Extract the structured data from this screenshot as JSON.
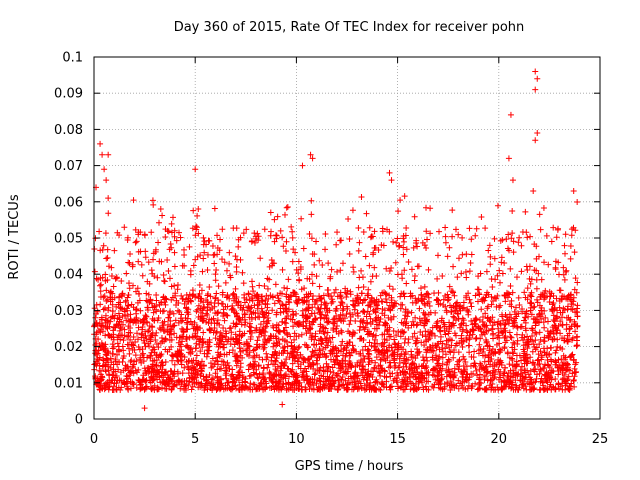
{
  "chart_data": {
    "type": "scatter",
    "title": "Day 360 of 2015, Rate Of TEC Index for receiver pohn",
    "xlabel": "GPS time / hours",
    "ylabel": "ROTI / TECUs",
    "xlim": [
      0,
      25
    ],
    "ylim": [
      0,
      0.1
    ],
    "x_ticks": [
      0,
      5,
      10,
      15,
      20,
      25
    ],
    "x_tick_labels": [
      "0",
      "5",
      "10",
      "15",
      "20",
      "25"
    ],
    "y_ticks": [
      0,
      0.01,
      0.02,
      0.03,
      0.04,
      0.05,
      0.06,
      0.07,
      0.08,
      0.09,
      0.1
    ],
    "y_tick_labels": [
      "0",
      "0.01",
      "0.02",
      "0.03",
      "0.04",
      "0.05",
      "0.06",
      "0.07",
      "0.08",
      "0.09",
      "0.1"
    ],
    "grid": true,
    "marker": "+",
    "color": "#ff0000",
    "series": [
      {
        "name": "ROTI",
        "x_range": [
          0,
          23.9
        ],
        "typical_range": [
          0.008,
          0.035
        ],
        "notable_points": [
          {
            "x": 0.1,
            "y": 0.064
          },
          {
            "x": 0.3,
            "y": 0.076
          },
          {
            "x": 0.4,
            "y": 0.073
          },
          {
            "x": 0.5,
            "y": 0.069
          },
          {
            "x": 0.6,
            "y": 0.066
          },
          {
            "x": 0.7,
            "y": 0.073
          },
          {
            "x": 0.7,
            "y": 0.061
          },
          {
            "x": 2.5,
            "y": 0.003
          },
          {
            "x": 3.3,
            "y": 0.058
          },
          {
            "x": 5.0,
            "y": 0.069
          },
          {
            "x": 9.3,
            "y": 0.004
          },
          {
            "x": 10.3,
            "y": 0.07
          },
          {
            "x": 10.7,
            "y": 0.073
          },
          {
            "x": 10.8,
            "y": 0.072
          },
          {
            "x": 14.6,
            "y": 0.068
          },
          {
            "x": 14.7,
            "y": 0.066
          },
          {
            "x": 20.5,
            "y": 0.072
          },
          {
            "x": 20.6,
            "y": 0.084
          },
          {
            "x": 20.7,
            "y": 0.066
          },
          {
            "x": 21.7,
            "y": 0.063
          },
          {
            "x": 21.8,
            "y": 0.096
          },
          {
            "x": 21.8,
            "y": 0.091
          },
          {
            "x": 21.9,
            "y": 0.094
          },
          {
            "x": 21.9,
            "y": 0.079
          },
          {
            "x": 21.8,
            "y": 0.077
          },
          {
            "x": 23.7,
            "y": 0.063
          }
        ]
      }
    ]
  }
}
